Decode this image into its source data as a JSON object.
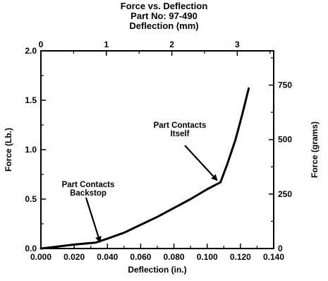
{
  "chart_data": {
    "type": "line",
    "title": "Force vs. Deflection",
    "subtitle": "Part No: 97-490",
    "xlabel": "Deflection (in.)",
    "ylabel": "Force (Lb.)",
    "x2label": "Deflection (mm)",
    "y2label": "Force (grams)",
    "xlim": [
      0.0,
      0.14
    ],
    "ylim": [
      0.0,
      2.0
    ],
    "x2lim": [
      0,
      3.556
    ],
    "y2lim": [
      0,
      907.2
    ],
    "x_ticks": [
      "0.000",
      "0.020",
      "0.040",
      "0.060",
      "0.080",
      "0.100",
      "0.120",
      "0.140"
    ],
    "y_ticks": [
      "0.0",
      "0.5",
      "1.0",
      "1.5",
      "2.0"
    ],
    "x2_ticks": [
      "0",
      "1",
      "2",
      "3"
    ],
    "y2_ticks": [
      "0",
      "250",
      "500",
      "750"
    ],
    "series": [
      {
        "x": [
          0.0,
          0.01,
          0.02,
          0.033,
          0.04,
          0.05,
          0.06,
          0.07,
          0.08,
          0.09,
          0.1,
          0.108,
          0.112,
          0.117,
          0.121,
          0.125
        ],
        "y": [
          0.0,
          0.02,
          0.04,
          0.06,
          0.1,
          0.16,
          0.24,
          0.32,
          0.41,
          0.5,
          0.6,
          0.67,
          0.85,
          1.1,
          1.35,
          1.62
        ]
      }
    ],
    "annotations": [
      {
        "text": [
          "Part Contacts",
          "Backstop"
        ],
        "x": 0.033,
        "y": 0.06
      },
      {
        "text": [
          "Part Contacts",
          "Itself"
        ],
        "x": 0.108,
        "y": 0.67
      }
    ],
    "grid": false,
    "legend": "none"
  }
}
